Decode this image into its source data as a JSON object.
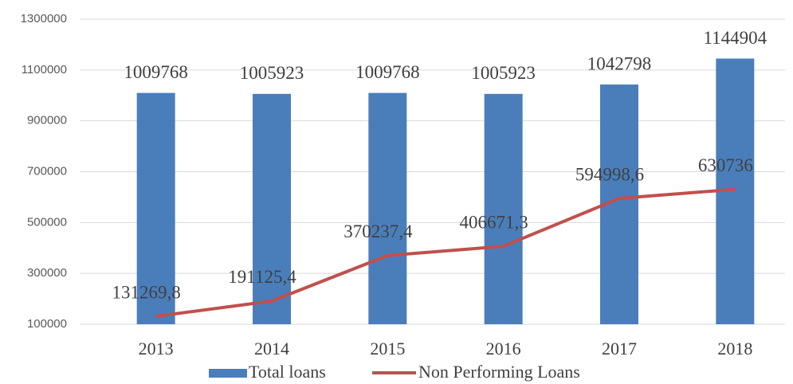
{
  "chart_data": {
    "type": "bar",
    "categories": [
      "2013",
      "2014",
      "2015",
      "2016",
      "2017",
      "2018"
    ],
    "series": [
      {
        "name": "Total loans",
        "type": "bar",
        "color": "#4a7ebb",
        "values": [
          1009768,
          1005923,
          1009768,
          1005923,
          1042798,
          1144904
        ]
      },
      {
        "name": "Non Performing Loans",
        "type": "line",
        "color": "#c0504d",
        "values": [
          131269.8,
          191125.4,
          370237.4,
          406671.3,
          594998.6,
          630736
        ],
        "value_labels": [
          "131269,8",
          "191125,4",
          "370237,4",
          "406671,3",
          "594998,6",
          "630736"
        ]
      }
    ],
    "ylim": [
      100000,
      1300000
    ],
    "yticks": [
      100000,
      300000,
      500000,
      700000,
      900000,
      1100000,
      1300000
    ],
    "grid": true,
    "legend": "bottom"
  }
}
